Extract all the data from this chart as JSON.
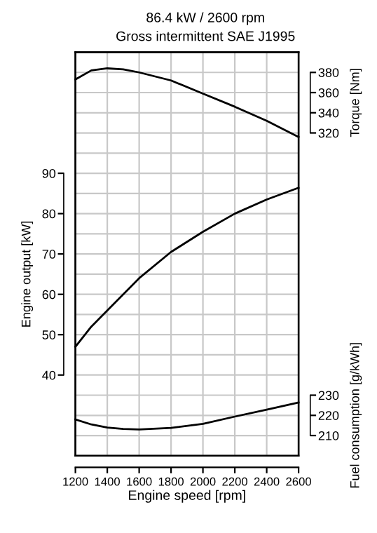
{
  "chart_data": {
    "type": "line",
    "title": "86.4 kW / 2600 rpm",
    "subtitle": "Gross intermittent SAE J1995",
    "xlabel": "Engine speed [rpm]",
    "ylabel": "Engine output [kW]",
    "y2label": "Torque [Nm]",
    "y3label": "Fuel consumption [g/kWh]",
    "x": [
      1200,
      1300,
      1400,
      1500,
      1600,
      1800,
      2000,
      2200,
      2400,
      2600
    ],
    "series": [
      {
        "axis": "y2",
        "color": "#000000",
        "values": [
          373,
          382,
          384,
          383,
          380,
          372,
          359,
          346,
          332,
          316
        ]
      },
      {
        "axis": "y",
        "color": "#000000",
        "values": [
          47,
          52,
          56,
          60,
          64,
          70.5,
          75.5,
          80,
          83.5,
          86.4
        ]
      },
      {
        "axis": "y3",
        "color": "#000000",
        "values": [
          218,
          215.5,
          214,
          213.3,
          213,
          213.8,
          215.8,
          219.4,
          222.8,
          226.4
        ]
      }
    ],
    "xlim": [
      1200,
      2600
    ],
    "xticks": [
      1200,
      1400,
      1600,
      1800,
      2000,
      2200,
      2400,
      2600
    ],
    "ylim": [
      20,
      120
    ],
    "yticks": [
      40,
      50,
      60,
      70,
      80,
      90
    ],
    "y2lim": [
      0,
      400
    ],
    "y2ticks": [
      320,
      340,
      360,
      380
    ],
    "y3lim": [
      200,
      400
    ],
    "y3ticks": [
      210,
      220,
      230
    ],
    "grid": true,
    "line_style": "solid",
    "marker": "none"
  }
}
